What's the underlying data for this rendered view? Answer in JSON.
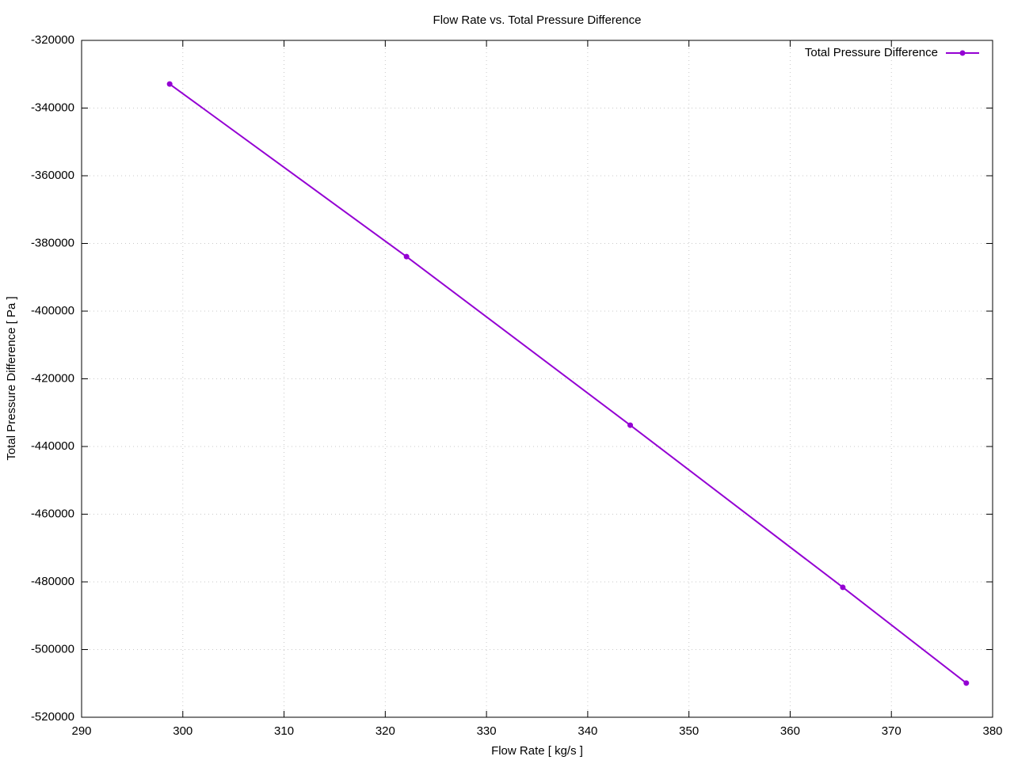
{
  "chart_data": {
    "type": "line",
    "title": "Flow Rate vs. Total Pressure Difference",
    "x_label": "Flow Rate [ kg/s ]",
    "y_label": "Total Pressure Difference [ Pa ]",
    "x": [
      298.7,
      322.1,
      344.2,
      365.2,
      377.4
    ],
    "series": [
      {
        "name": "Total Pressure Difference",
        "color": "#9400d3",
        "values": [
          -332900,
          -383900,
          -433700,
          -481600,
          -509900
        ]
      }
    ],
    "xlim": [
      290,
      380
    ],
    "xticks": [
      290,
      300,
      310,
      320,
      330,
      340,
      350,
      360,
      370,
      380
    ],
    "ylim": [
      -520000,
      -320000
    ],
    "yticks": [
      -520000,
      -500000,
      -480000,
      -460000,
      -440000,
      -420000,
      -400000,
      -380000,
      -360000,
      -340000,
      -320000
    ],
    "grid": true,
    "legend": "top-right"
  }
}
